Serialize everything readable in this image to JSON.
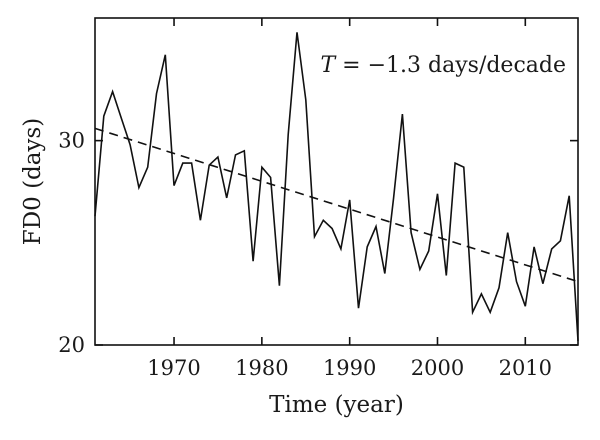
{
  "chart_data": {
    "type": "line",
    "title": "",
    "xlabel": "Time (year)",
    "ylabel": "FD0 (days)",
    "xlim": [
      1961,
      2016
    ],
    "ylim": [
      20,
      36
    ],
    "xticks": [
      1970,
      1980,
      1990,
      2000,
      2010
    ],
    "yticks": [
      20,
      30
    ],
    "grid": false,
    "annotation": {
      "prefix": "T",
      "text": " = −1.3 days/decade"
    },
    "series": [
      {
        "style": "solid",
        "x": [
          1961,
          1962,
          1963,
          1964,
          1965,
          1966,
          1967,
          1968,
          1969,
          1970,
          1971,
          1972,
          1973,
          1974,
          1975,
          1976,
          1977,
          1978,
          1979,
          1980,
          1981,
          1982,
          1983,
          1984,
          1985,
          1986,
          1987,
          1988,
          1989,
          1990,
          1991,
          1992,
          1993,
          1994,
          1995,
          1996,
          1997,
          1998,
          1999,
          2000,
          2001,
          2002,
          2003,
          2004,
          2005,
          2006,
          2007,
          2008,
          2009,
          2010,
          2011,
          2012,
          2013,
          2014,
          2015,
          2016
        ],
        "y": [
          26.3,
          31.2,
          32.4,
          31.1,
          29.8,
          27.7,
          28.7,
          32.3,
          34.2,
          27.8,
          28.9,
          28.9,
          26.1,
          28.8,
          29.2,
          27.2,
          29.3,
          29.5,
          24.1,
          28.7,
          28.2,
          22.9,
          30.3,
          35.3,
          32.0,
          25.3,
          26.1,
          25.7,
          24.7,
          27.1,
          21.8,
          24.8,
          25.8,
          23.5,
          27.2,
          31.3,
          25.5,
          23.7,
          24.6,
          27.4,
          23.4,
          28.9,
          28.7,
          21.6,
          22.5,
          21.6,
          22.8,
          25.5,
          23.1,
          21.9,
          24.8,
          23.0,
          24.7,
          25.1,
          27.3,
          20.2
        ]
      },
      {
        "style": "dashed",
        "x": [
          1961,
          2016
        ],
        "y": [
          30.6,
          23.1
        ]
      }
    ]
  }
}
